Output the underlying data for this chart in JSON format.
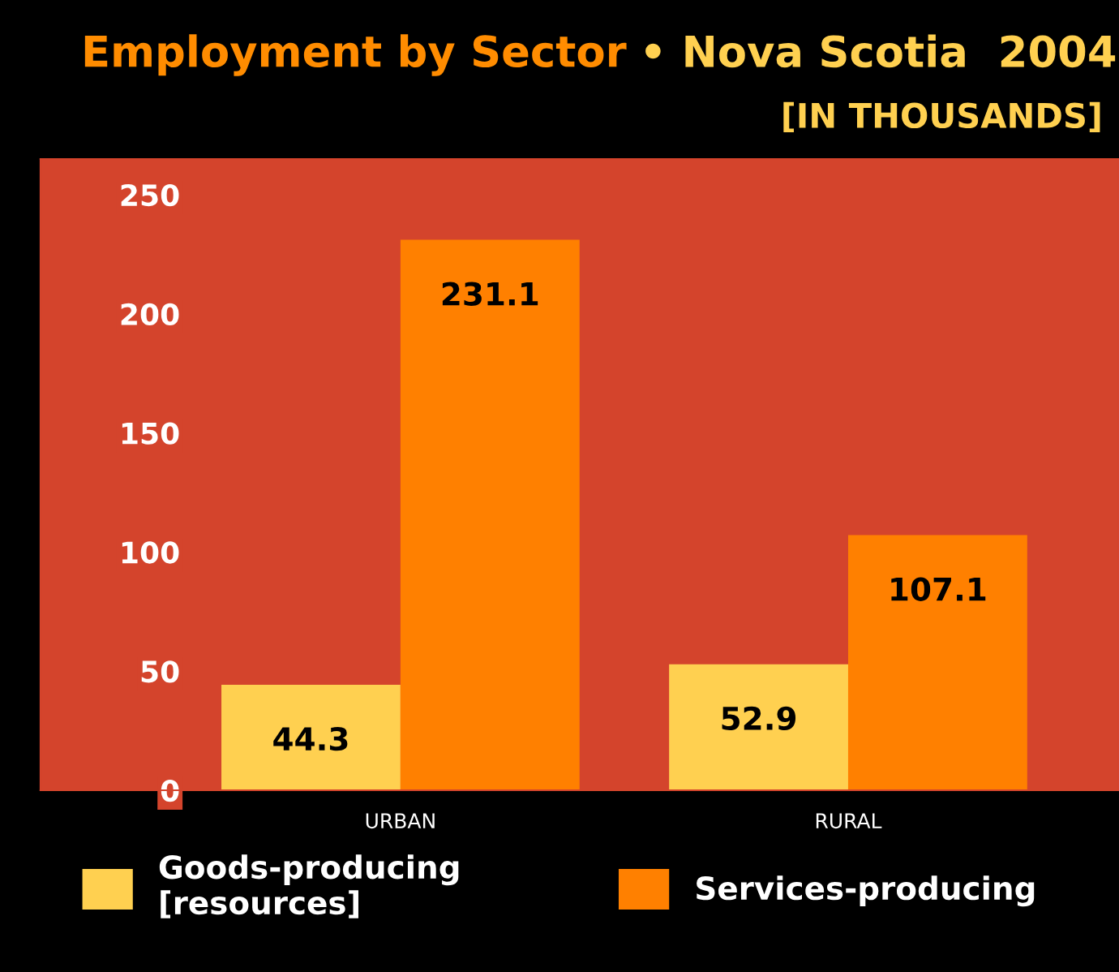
{
  "chart_data": {
    "type": "bar",
    "title": "Employment by Sector",
    "subtitle": "• Nova Scotia  2004",
    "annotations": [
      "[IN THOUSANDS]"
    ],
    "categories": [
      "URBAN",
      "RURAL"
    ],
    "series": [
      {
        "name": "Goods-producing\n[resources]",
        "color": "#ffd050",
        "values": [
          44.3,
          52.9
        ]
      },
      {
        "name": "Services-producing",
        "color": "#ff8000",
        "values": [
          231.1,
          107.1
        ]
      }
    ],
    "ylim": [
      0,
      265
    ],
    "yticks": [
      0,
      50,
      100,
      150,
      200,
      250
    ],
    "data_labels": true,
    "grid": false,
    "legend": "bottom"
  }
}
